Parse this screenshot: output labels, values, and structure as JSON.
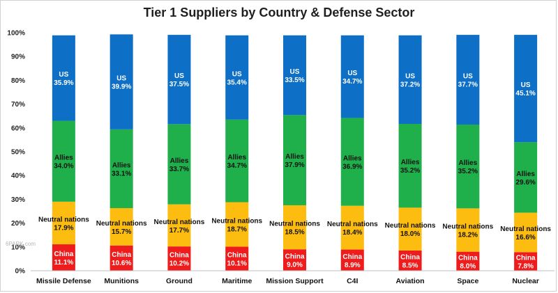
{
  "chart_data": {
    "type": "bar",
    "stacked": true,
    "title": "Tier 1 Suppliers by Country & Defense Sector",
    "categories": [
      "Missile Defense",
      "Munitions",
      "Ground",
      "Maritime",
      "Mission Support",
      "C4I",
      "Aviation",
      "Space",
      "Nuclear"
    ],
    "series": [
      {
        "name": "China",
        "color": "#ee1c1c",
        "label_color": "#ffffff",
        "values": [
          11.1,
          10.6,
          10.2,
          10.1,
          9.0,
          8.9,
          8.5,
          8.0,
          7.8
        ]
      },
      {
        "name": "Neutral nations",
        "color": "#fdbd10",
        "label_color": "#111111",
        "values": [
          17.9,
          15.7,
          17.7,
          18.7,
          18.5,
          18.4,
          18.0,
          18.2,
          16.6
        ]
      },
      {
        "name": "Allies",
        "color": "#1fb04c",
        "label_color": "#111111",
        "values": [
          34.0,
          33.1,
          33.7,
          34.7,
          37.9,
          36.9,
          35.2,
          35.2,
          29.6
        ]
      },
      {
        "name": "US",
        "color": "#0d6fc5",
        "label_color": "#ffffff",
        "values": [
          35.9,
          39.9,
          37.5,
          35.4,
          33.5,
          34.7,
          37.2,
          37.7,
          45.1
        ]
      }
    ],
    "ylim": [
      0,
      100
    ],
    "yticks": [
      "0%",
      "10%",
      "20%",
      "30%",
      "40%",
      "50%",
      "60%",
      "70%",
      "80%",
      "90%",
      "100%"
    ],
    "grid": false,
    "legend": "none"
  },
  "watermark": "6PARK.com"
}
